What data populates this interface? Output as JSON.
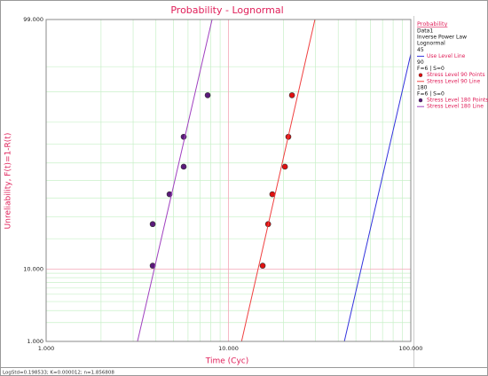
{
  "chart_data": {
    "type": "scatter",
    "title": "Probability - Lognormal",
    "x_label": "Time (Cyc)",
    "y_label": "Unreliability, F(t)=1-R(t)",
    "x_scale": "log",
    "y_scale": "normal-probability",
    "xlim": [
      1,
      100
    ],
    "ylim": [
      1,
      99
    ],
    "xticks": [
      {
        "value": 1,
        "label": "1.000"
      },
      {
        "value": 10,
        "label": "10.000"
      },
      {
        "value": 100,
        "label": "100.000"
      }
    ],
    "yticks": [
      {
        "value": 1,
        "label": "1.000"
      },
      {
        "value": 10,
        "label": "10.000"
      },
      {
        "value": 99,
        "label": "99.000"
      }
    ],
    "x_minor_grid": [
      2,
      3,
      4,
      5,
      6,
      7,
      8,
      9,
      20,
      30,
      40,
      50,
      60,
      70,
      80,
      90
    ],
    "y_minor_grid": [
      2,
      3,
      4,
      5,
      6,
      7,
      8,
      9,
      20,
      30,
      40,
      50,
      60,
      70,
      80,
      90,
      95
    ],
    "grid": true,
    "legend_title": "Probability",
    "legend_info": [
      "Data1",
      "Inverse Power Law",
      "Lognormal"
    ],
    "groups": [
      {
        "label": "45",
        "series": [
          {
            "name": "Use Level Line",
            "mode": "line",
            "color": "#3333dd",
            "x": [
              43.2,
              110.6
            ],
            "values": [
              1,
              99
            ]
          }
        ]
      },
      {
        "label": "90",
        "note": "F=6 | S=0",
        "series": [
          {
            "name": "Stress Level 90 Points",
            "mode": "points",
            "color": "#e01010",
            "x": [
              15.4,
              16.5,
              17.4,
              20.4,
              21.3,
              22.3
            ],
            "values": [
              10.9,
              26.4,
              42.1,
              57.9,
              73.6,
              89.1
            ]
          },
          {
            "name": "Stress Level 90 Line",
            "mode": "line",
            "color": "#f04040",
            "x": [
              11.8,
              29.8
            ],
            "values": [
              1,
              99
            ]
          }
        ]
      },
      {
        "label": "180",
        "note": "F=6 | S=0",
        "series": [
          {
            "name": "Stress Level 180 Points",
            "mode": "points",
            "color": "#5a1a7a",
            "x": [
              3.84,
              3.84,
              4.75,
              5.68,
              5.68,
              7.69
            ],
            "values": [
              10.9,
              26.4,
              42.1,
              57.9,
              73.6,
              89.1
            ]
          },
          {
            "name": "Stress Level 180 Line",
            "mode": "line",
            "color": "#a040c0",
            "x": [
              3.17,
              8.13
            ],
            "values": [
              1,
              99
            ]
          }
        ]
      }
    ],
    "footer": "LogStd=0.198533; K=0.000012; n=1.856808"
  }
}
